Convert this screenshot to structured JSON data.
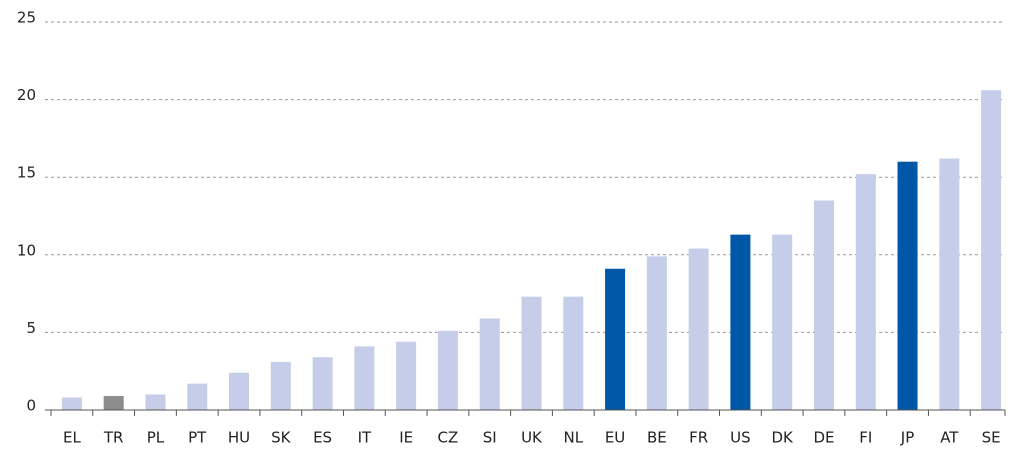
{
  "chart_data": {
    "type": "bar",
    "categories": [
      "EL",
      "TR",
      "PL",
      "PT",
      "HU",
      "SK",
      "ES",
      "IT",
      "IE",
      "CZ",
      "SI",
      "UK",
      "NL",
      "EU",
      "BE",
      "FR",
      "US",
      "DK",
      "DE",
      "FI",
      "JP",
      "AT",
      "SE"
    ],
    "values": [
      0.8,
      0.9,
      1.0,
      1.7,
      2.4,
      3.1,
      3.4,
      4.1,
      4.4,
      5.1,
      5.9,
      7.3,
      7.3,
      9.1,
      9.9,
      10.4,
      11.3,
      11.3,
      13.5,
      15.2,
      16.0,
      16.2,
      20.6
    ],
    "colors": [
      "#c5cde8",
      "#8c8c8c",
      "#c5cde8",
      "#c5cde8",
      "#c5cde8",
      "#c5cde8",
      "#c5cde8",
      "#c5cde8",
      "#c5cde8",
      "#c5cde8",
      "#c5cde8",
      "#c5cde8",
      "#c5cde8",
      "#0057a8",
      "#c5cde8",
      "#c5cde8",
      "#0057a8",
      "#c5cde8",
      "#c5cde8",
      "#c5cde8",
      "#0057a8",
      "#c5cde8",
      "#c5cde8"
    ],
    "ylim": [
      0,
      25
    ],
    "yticks": [
      0,
      5,
      10,
      15,
      20,
      25
    ],
    "grid": true
  }
}
